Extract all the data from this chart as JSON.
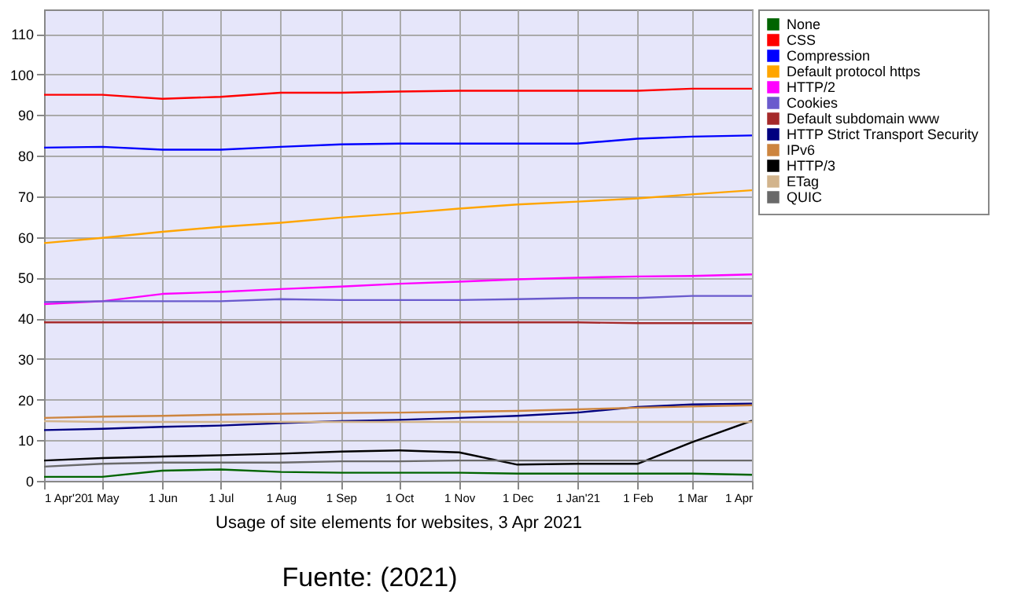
{
  "chart_data": {
    "type": "line",
    "xlabel": "Usage of site elements for websites, 3 Apr 2021",
    "annotations": [
      "Fuente: (2021)"
    ],
    "x": [
      "2020-04-01",
      "2020-05-01",
      "2020-06-01",
      "2020-07-01",
      "2020-08-01",
      "2020-09-01",
      "2020-10-01",
      "2020-11-01",
      "2020-12-01",
      "2021-01-01",
      "2021-02-01",
      "2021-03-01",
      "2021-04-01"
    ],
    "xlim": [
      "2020-04-01",
      "2021-04-01"
    ],
    "xticks": [
      {
        "value": "2020-04-01",
        "label": "1 Apr'20"
      },
      {
        "value": "2020-05-01",
        "label": "1 May"
      },
      {
        "value": "2020-06-01",
        "label": "1 Jun"
      },
      {
        "value": "2020-07-01",
        "label": "1 Jul"
      },
      {
        "value": "2020-08-01",
        "label": "1 Aug"
      },
      {
        "value": "2020-09-01",
        "label": "1 Sep"
      },
      {
        "value": "2020-10-01",
        "label": "1 Oct"
      },
      {
        "value": "2020-11-01",
        "label": "1 Nov"
      },
      {
        "value": "2020-12-01",
        "label": "1 Dec"
      },
      {
        "value": "2021-01-01",
        "label": "1 Jan'21"
      },
      {
        "value": "2021-02-01",
        "label": "1 Feb"
      },
      {
        "value": "2021-03-01",
        "label": "1 Mar"
      },
      {
        "value": "2021-04-01",
        "label": "1 Apr"
      }
    ],
    "ylim": [
      0,
      116
    ],
    "yticks": [
      0,
      10,
      20,
      30,
      40,
      50,
      60,
      70,
      80,
      90,
      100,
      110
    ],
    "grid": true,
    "legend": "right",
    "marker": "none",
    "line_style": "solid",
    "series": [
      {
        "name": "None",
        "color": "#006400",
        "values": [
          1,
          1,
          2.5,
          2.8,
          2.2,
          2,
          2,
          2,
          1.8,
          1.8,
          1.8,
          1.8,
          1.5
        ]
      },
      {
        "name": "CSS",
        "color": "#ff0000",
        "values": [
          95,
          95,
          94,
          94.5,
          95.5,
          95.5,
          95.8,
          96,
          96,
          96,
          96,
          96.5,
          96.5
        ]
      },
      {
        "name": "Compression",
        "color": "#0000ff",
        "values": [
          82,
          82.2,
          81.5,
          81.5,
          82.2,
          82.8,
          83,
          83,
          83,
          83,
          84.2,
          84.7,
          85
        ]
      },
      {
        "name": "Default protocol https",
        "color": "#ffa500",
        "values": [
          58.5,
          59.8,
          61.3,
          62.5,
          63.5,
          64.8,
          65.8,
          67,
          68,
          68.7,
          69.5,
          70.5,
          71.5
        ]
      },
      {
        "name": "HTTP/2",
        "color": "#ff00ff",
        "values": [
          43.5,
          44.2,
          46,
          46.5,
          47.2,
          47.8,
          48.5,
          49,
          49.6,
          50,
          50.3,
          50.4,
          50.8
        ]
      },
      {
        "name": "Cookies",
        "color": "#6a5acd",
        "values": [
          44,
          44.2,
          44.2,
          44.2,
          44.7,
          44.5,
          44.5,
          44.5,
          44.7,
          45,
          45,
          45.5,
          45.5
        ]
      },
      {
        "name": "Default subdomain www",
        "color": "#a52a2a",
        "values": [
          39,
          39,
          39,
          39,
          39,
          39,
          39,
          39,
          39,
          39,
          38.8,
          38.8,
          38.8
        ]
      },
      {
        "name": "HTTP Strict Transport Security",
        "color": "#000080",
        "values": [
          12.5,
          12.8,
          13.3,
          13.6,
          14.2,
          14.7,
          15,
          15.5,
          16,
          16.8,
          18.2,
          18.8,
          19
        ]
      },
      {
        "name": "IPv6",
        "color": "#cd853f",
        "values": [
          15.5,
          15.8,
          16,
          16.3,
          16.5,
          16.7,
          16.8,
          17,
          17.2,
          17.6,
          18,
          18.3,
          18.6
        ]
      },
      {
        "name": "HTTP/3",
        "color": "#000000",
        "values": [
          5,
          5.6,
          6,
          6.3,
          6.7,
          7.2,
          7.5,
          7,
          4,
          4.2,
          4.2,
          9.5,
          14.8
        ]
      },
      {
        "name": "ETag",
        "color": "#d2b48c",
        "values": [
          14.7,
          14.5,
          14.5,
          14.5,
          14.5,
          14.5,
          14.5,
          14.5,
          14.5,
          14.5,
          14.5,
          14.5,
          14.5
        ]
      },
      {
        "name": "QUIC",
        "color": "#696969",
        "values": [
          3.5,
          4.2,
          4.5,
          4.5,
          4.5,
          4.8,
          4.8,
          5,
          5,
          5,
          5,
          5,
          5
        ]
      }
    ]
  }
}
